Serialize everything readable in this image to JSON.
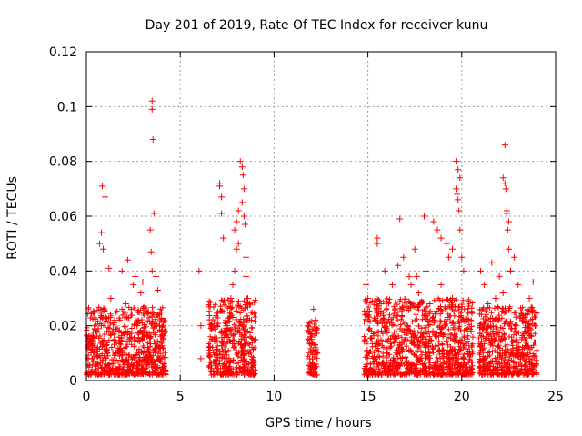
{
  "chart_data": {
    "type": "scatter",
    "title": "Day 201 of 2019, Rate Of TEC Index for receiver kunu",
    "xlabel": "GPS time / hours",
    "ylabel": "ROTI / TECUs",
    "xlim": [
      0,
      25
    ],
    "ylim": [
      0,
      0.12
    ],
    "x_ticks": [
      "0",
      "5",
      "10",
      "15",
      "20",
      "25"
    ],
    "y_ticks": [
      "0",
      "0.02",
      "0.04",
      "0.06",
      "0.08",
      "0.1",
      "0.12"
    ],
    "grid": true,
    "marker": "+",
    "color": "#ff0000",
    "x": [
      0.2,
      0.4,
      0.6,
      0.8,
      0.9,
      1.1,
      1.3,
      1.5,
      1.7,
      1.9,
      2.1,
      2.3,
      2.5,
      2.7,
      2.9,
      3.1,
      3.3,
      3.5,
      3.5,
      3.55,
      3.6,
      3.7,
      3.9,
      4.1,
      4.2,
      0.7,
      0.8,
      0.85,
      1.0,
      1.2,
      2.2,
      2.6,
      3.0,
      3.4,
      3.45,
      3.5,
      3.8,
      4.0,
      0.3,
      0.5,
      1.4,
      1.8,
      2.4,
      2.8,
      3.2,
      6.0,
      6.1,
      6.1,
      6.6,
      6.8,
      7.0,
      7.1,
      7.2,
      7.3,
      7.5,
      7.7,
      7.9,
      8.0,
      8.1,
      8.2,
      8.3,
      8.35,
      8.4,
      8.5,
      8.6,
      8.8,
      9.0,
      7.1,
      7.2,
      7.8,
      7.9,
      8.0,
      8.1,
      8.3,
      8.4,
      8.45,
      8.5,
      8.7,
      6.9,
      7.4,
      7.6,
      11.8,
      11.9,
      12.0,
      12.1,
      12.2,
      12.3,
      12.0,
      12.1,
      11.9,
      12.2,
      14.9,
      15.0,
      15.2,
      15.4,
      15.5,
      15.7,
      15.9,
      16.1,
      16.3,
      16.5,
      16.7,
      16.9,
      17.1,
      17.3,
      17.5,
      17.7,
      17.9,
      18.1,
      18.3,
      18.5,
      18.7,
      18.9,
      19.1,
      19.3,
      19.5,
      19.7,
      19.8,
      19.9,
      20.1,
      20.3,
      20.5,
      15.5,
      16.6,
      17.2,
      18.0,
      18.5,
      18.9,
      19.2,
      19.5,
      19.7,
      19.75,
      19.8,
      19.85,
      19.9,
      20.0,
      17.6,
      16.0,
      15.3,
      18.3,
      19.0,
      20.2,
      21.0,
      21.2,
      21.4,
      21.6,
      21.8,
      22.0,
      22.2,
      22.3,
      22.4,
      22.5,
      22.6,
      22.8,
      23.0,
      23.2,
      23.4,
      23.6,
      23.8,
      23.9,
      22.3,
      22.35,
      22.4,
      22.45,
      22.5,
      22.6,
      22.2,
      21.5,
      23.8,
      23.5,
      22.1,
      22.9
    ],
    "y": [
      0.015,
      0.025,
      0.012,
      0.02,
      0.048,
      0.018,
      0.03,
      0.022,
      0.01,
      0.04,
      0.028,
      0.015,
      0.035,
      0.02,
      0.032,
      0.012,
      0.025,
      0.102,
      0.099,
      0.088,
      0.061,
      0.038,
      0.02,
      0.015,
      0.018,
      0.05,
      0.054,
      0.071,
      0.067,
      0.041,
      0.044,
      0.038,
      0.036,
      0.055,
      0.047,
      0.04,
      0.033,
      0.025,
      0.008,
      0.006,
      0.004,
      0.005,
      0.006,
      0.007,
      0.009,
      0.04,
      0.02,
      0.008,
      0.012,
      0.015,
      0.025,
      0.072,
      0.061,
      0.052,
      0.02,
      0.03,
      0.055,
      0.058,
      0.062,
      0.08,
      0.078,
      0.075,
      0.07,
      0.045,
      0.03,
      0.022,
      0.015,
      0.071,
      0.067,
      0.035,
      0.04,
      0.048,
      0.05,
      0.065,
      0.06,
      0.057,
      0.038,
      0.028,
      0.006,
      0.005,
      0.007,
      0.02,
      0.018,
      0.015,
      0.026,
      0.012,
      0.01,
      0.005,
      0.004,
      0.008,
      0.022,
      0.035,
      0.03,
      0.018,
      0.022,
      0.05,
      0.028,
      0.04,
      0.015,
      0.035,
      0.025,
      0.059,
      0.045,
      0.02,
      0.035,
      0.048,
      0.032,
      0.025,
      0.04,
      0.028,
      0.022,
      0.055,
      0.035,
      0.02,
      0.045,
      0.03,
      0.08,
      0.077,
      0.074,
      0.04,
      0.025,
      0.018,
      0.052,
      0.042,
      0.038,
      0.06,
      0.058,
      0.052,
      0.05,
      0.048,
      0.07,
      0.068,
      0.066,
      0.062,
      0.055,
      0.045,
      0.038,
      0.01,
      0.006,
      0.005,
      0.006,
      0.005,
      0.04,
      0.035,
      0.028,
      0.043,
      0.03,
      0.038,
      0.074,
      0.072,
      0.061,
      0.058,
      0.04,
      0.045,
      0.035,
      0.025,
      0.018,
      0.03,
      0.036,
      0.02,
      0.086,
      0.07,
      0.062,
      0.055,
      0.048,
      0.04,
      0.032,
      0.006,
      0.004,
      0.005,
      0.015,
      0.012
    ]
  }
}
